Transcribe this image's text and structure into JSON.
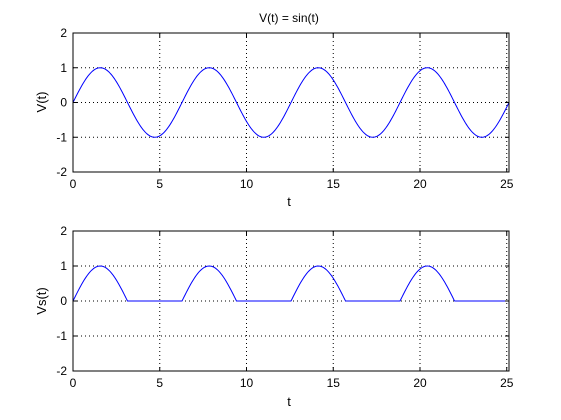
{
  "chart_data": [
    {
      "type": "line",
      "title": "V(t) = sin(t)",
      "xlabel": "t",
      "ylabel": "V(t)",
      "xlim": [
        0,
        25.13
      ],
      "ylim": [
        -2,
        2
      ],
      "xticks": [
        0,
        5,
        10,
        15,
        20,
        25
      ],
      "yticks": [
        -2,
        -1,
        0,
        1,
        2
      ],
      "grid": true,
      "color": "#0000ff",
      "series": [
        {
          "function": "sin(t)",
          "t_start": 0,
          "t_end": 25.13,
          "samples": 400
        }
      ]
    },
    {
      "type": "line",
      "title": "",
      "xlabel": "t",
      "ylabel": "Vs(t)",
      "xlim": [
        0,
        25.13
      ],
      "ylim": [
        -2,
        2
      ],
      "xticks": [
        0,
        5,
        10,
        15,
        20,
        25
      ],
      "yticks": [
        -2,
        -1,
        0,
        1,
        2
      ],
      "grid": true,
      "color": "#0000ff",
      "series": [
        {
          "function": "max(sin(t), 0)",
          "t_start": 0,
          "t_end": 25.13,
          "samples": 400
        }
      ]
    }
  ]
}
